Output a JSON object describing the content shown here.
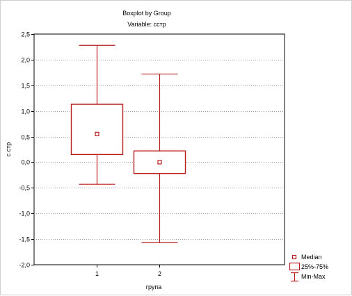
{
  "chart_data": {
    "type": "boxplot",
    "title": "Boxplot by Group",
    "subtitle": "Variable: сстр",
    "xlabel": "група",
    "ylabel": "с стр",
    "ylim": [
      -2.0,
      2.5
    ],
    "y_ticks": [
      "2,5",
      "2,0",
      "1,5",
      "1,0",
      "0,5",
      "0,0",
      "-0,5",
      "-1,0",
      "-1,5",
      "-2,0"
    ],
    "y_tick_values": [
      2.5,
      2.0,
      1.5,
      1.0,
      0.5,
      0.0,
      -0.5,
      -1.0,
      -1.5,
      -2.0
    ],
    "categories": [
      "1",
      "2"
    ],
    "boxes": [
      {
        "group": "1",
        "median": 0.55,
        "q1": 0.15,
        "q3": 1.13,
        "min": -0.43,
        "max": 2.28
      },
      {
        "group": "2",
        "median": 0.0,
        "q1": -0.22,
        "q3": 0.22,
        "min": -1.57,
        "max": 1.72
      }
    ],
    "grid": true,
    "legend_position": "bottom-right",
    "legend": [
      "Median",
      "25%-75%",
      "Min-Max"
    ],
    "color": "#b81c1c"
  }
}
